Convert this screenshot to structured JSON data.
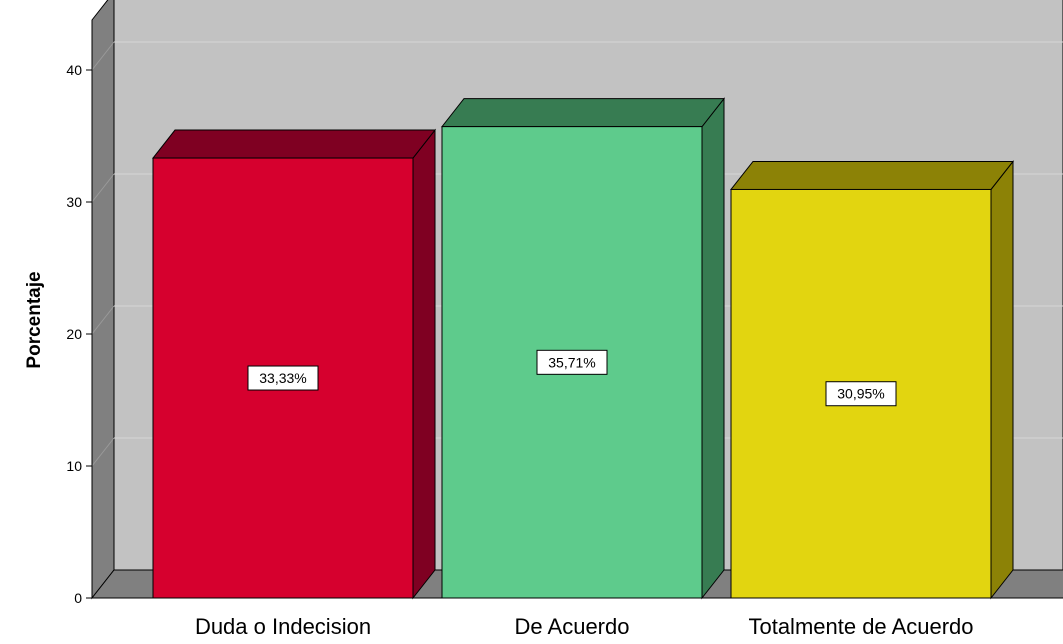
{
  "chart_data": {
    "type": "bar",
    "ylabel": "Porcentaje",
    "ylim": [
      0,
      40
    ],
    "yticks": [
      0,
      10,
      20,
      30,
      40
    ],
    "grid": true,
    "style": "3d",
    "categories": [
      "Duda o Indecision",
      "De Acuerdo",
      "Totalmente de Acuerdo"
    ],
    "values": [
      33.33,
      35.71,
      30.95
    ],
    "data_labels": [
      "33,33%",
      "35,71%",
      "30,95%"
    ],
    "colors": [
      {
        "front": "#d6002e",
        "top": "#7f0022",
        "side": "#7f0022"
      },
      {
        "front": "#5ecb8c",
        "top": "#377c52",
        "side": "#377c52"
      },
      {
        "front": "#e2d510",
        "top": "#8c8206",
        "side": "#8c8206"
      }
    ],
    "wall_color": "#c2c2c2",
    "side_wall_color": "#808080"
  }
}
